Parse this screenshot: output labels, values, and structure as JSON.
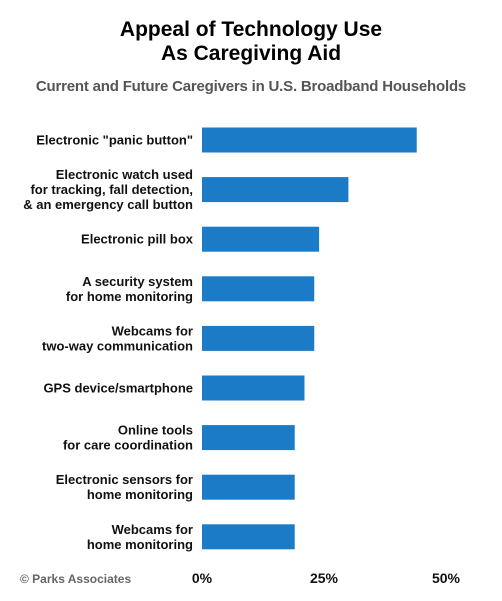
{
  "title_lines": [
    "Appeal of Technology Use",
    "As Caregiving Aid"
  ],
  "subtitle": "Current and Future Caregivers in U.S. Broadband Households",
  "footer": "© Parks Associates",
  "colors": {
    "bar": "#1b7bc6"
  },
  "chart_data": {
    "type": "bar",
    "orientation": "horizontal",
    "title": "Appeal of Technology Use As Caregiving Aid",
    "subtitle": "Current and Future Caregivers in U.S. Broadband Households",
    "categories": [
      [
        "Electronic \"panic button\""
      ],
      [
        "Electronic watch used",
        "for tracking, fall detection,",
        "& an emergency call button"
      ],
      [
        "Electronic pill box"
      ],
      [
        "A security system",
        "for home monitoring"
      ],
      [
        "Webcams for",
        "two-way communication"
      ],
      [
        "GPS device/smartphone"
      ],
      [
        "Online tools",
        "for care coordination"
      ],
      [
        "Electronic sensors for",
        "home monitoring"
      ],
      [
        "Webcams for",
        "home monitoring"
      ]
    ],
    "values": [
      44,
      30,
      24,
      23,
      23,
      21,
      19,
      19,
      19
    ],
    "xlim": [
      0,
      50
    ],
    "xticks": [
      "0%",
      "25%",
      "50%"
    ],
    "xtick_values": [
      0,
      25,
      50
    ],
    "grid": false,
    "legend": "none"
  }
}
